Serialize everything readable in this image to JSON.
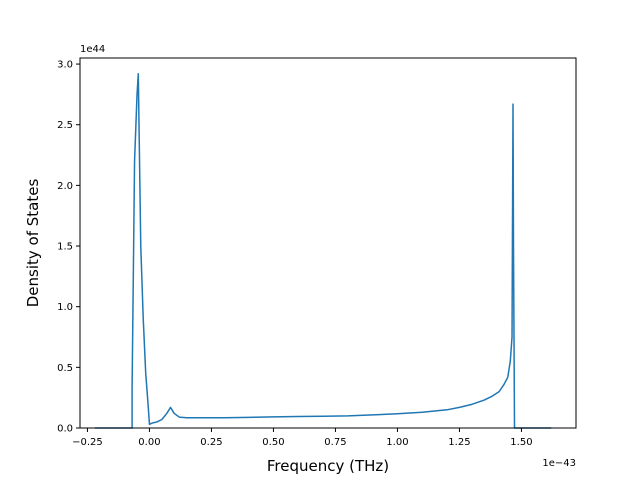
{
  "chart_data": {
    "type": "line",
    "xlabel": "Frequency (THz)",
    "ylabel": "Density of States",
    "x_offset_label": "1e−43",
    "y_offset_label": "1e44",
    "xlim": [
      -0.28,
      1.72
    ],
    "ylim": [
      0,
      3.05
    ],
    "x_ticks": [
      -0.25,
      0.0,
      0.25,
      0.5,
      0.75,
      1.0,
      1.25,
      1.5
    ],
    "x_tick_labels": [
      "−0.25",
      "0.00",
      "0.25",
      "0.50",
      "0.75",
      "1.00",
      "1.25",
      "1.50"
    ],
    "y_ticks": [
      0.0,
      0.5,
      1.0,
      1.5,
      2.0,
      2.5,
      3.0
    ],
    "y_tick_labels": [
      "0.0",
      "0.5",
      "1.0",
      "1.5",
      "2.0",
      "2.5",
      "3.0"
    ],
    "grid": false,
    "color": "#1f77b4",
    "series": [
      {
        "x": [
          -0.22,
          -0.07,
          -0.07,
          -0.06,
          -0.05,
          -0.045,
          -0.035,
          -0.025,
          -0.015,
          -0.005,
          0.0,
          0.01,
          0.03,
          0.05,
          0.07,
          0.085,
          0.1,
          0.12,
          0.15,
          0.2,
          0.3,
          0.4,
          0.5,
          0.6,
          0.7,
          0.8,
          0.9,
          1.0,
          1.1,
          1.2,
          1.25,
          1.3,
          1.35,
          1.38,
          1.41,
          1.43,
          1.445,
          1.455,
          1.462,
          1.466,
          1.468,
          1.472,
          1.48,
          1.62
        ],
        "y": [
          0.0,
          0.0,
          0.32,
          2.2,
          2.75,
          2.92,
          1.5,
          0.9,
          0.45,
          0.18,
          0.03,
          0.04,
          0.05,
          0.07,
          0.12,
          0.17,
          0.12,
          0.09,
          0.085,
          0.085,
          0.085,
          0.088,
          0.092,
          0.095,
          0.097,
          0.1,
          0.108,
          0.118,
          0.13,
          0.15,
          0.17,
          0.195,
          0.23,
          0.26,
          0.3,
          0.36,
          0.42,
          0.55,
          0.75,
          2.67,
          1.5,
          0.0,
          0.0,
          0.0
        ]
      }
    ]
  }
}
